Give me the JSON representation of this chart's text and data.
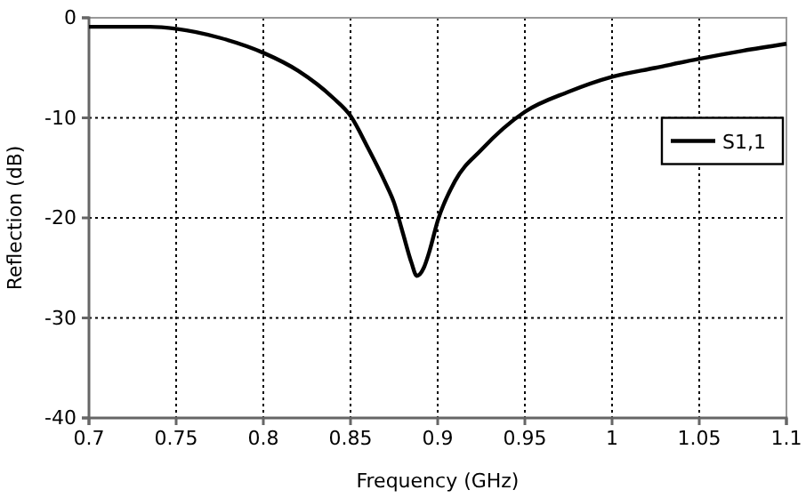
{
  "chart_data": {
    "type": "line",
    "xlabel": "Frequency (GHz)",
    "ylabel": "Reflection (dB)",
    "x": [
      0.7,
      0.72,
      0.735,
      0.75,
      0.775,
      0.8,
      0.82,
      0.84,
      0.85,
      0.86,
      0.87,
      0.875,
      0.88,
      0.885,
      0.888,
      0.892,
      0.895,
      0.9,
      0.91,
      0.925,
      0.95,
      0.975,
      1.0,
      1.025,
      1.05,
      1.075,
      1.1
    ],
    "series": [
      {
        "name": "S1,1",
        "color": "#000000",
        "values": [
          -0.9,
          -0.9,
          -0.9,
          -1.1,
          -2.0,
          -3.5,
          -5.3,
          -8.0,
          -9.8,
          -13,
          -16.5,
          -18.5,
          -21.5,
          -24.5,
          -25.8,
          -25,
          -23.5,
          -20.3,
          -16.3,
          -13.2,
          -9.4,
          -7.4,
          -5.9,
          -5.0,
          -4.1,
          -3.3,
          -2.6
        ]
      }
    ],
    "xlim": [
      0.7,
      1.1
    ],
    "xticks": [
      0.7,
      0.75,
      0.8,
      0.85,
      0.9,
      0.95,
      1,
      1.05,
      1.1
    ],
    "ylim": [
      -40,
      0
    ],
    "yticks": [
      -40,
      -30,
      -20,
      -10,
      0
    ],
    "grid": true,
    "legend": "right",
    "line_style": "solid",
    "marker": "none"
  }
}
